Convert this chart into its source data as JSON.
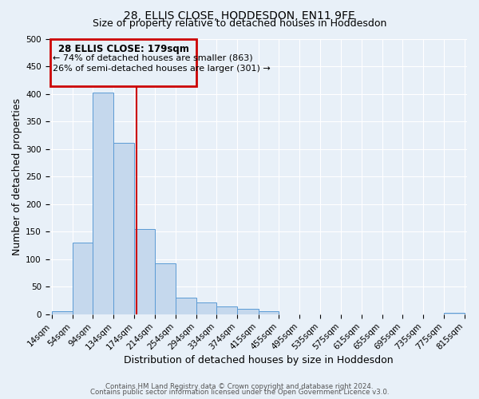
{
  "title": "28, ELLIS CLOSE, HODDESDON, EN11 9FE",
  "subtitle": "Size of property relative to detached houses in Hoddesdon",
  "xlabel": "Distribution of detached houses by size in Hoddesdon",
  "ylabel": "Number of detached properties",
  "footnote1": "Contains HM Land Registry data © Crown copyright and database right 2024.",
  "footnote2": "Contains public sector information licensed under the Open Government Licence v3.0.",
  "bin_edges": [
    14,
    54,
    94,
    134,
    174,
    214,
    254,
    294,
    334,
    374,
    415,
    455,
    495,
    535,
    575,
    615,
    655,
    695,
    735,
    775,
    815
  ],
  "bin_labels": [
    "14sqm",
    "54sqm",
    "94sqm",
    "134sqm",
    "174sqm",
    "214sqm",
    "254sqm",
    "294sqm",
    "334sqm",
    "374sqm",
    "415sqm",
    "455sqm",
    "495sqm",
    "535sqm",
    "575sqm",
    "615sqm",
    "655sqm",
    "695sqm",
    "735sqm",
    "775sqm",
    "815sqm"
  ],
  "counts": [
    6,
    130,
    403,
    311,
    155,
    92,
    30,
    21,
    14,
    10,
    5,
    0,
    0,
    0,
    0,
    0,
    0,
    0,
    0,
    2
  ],
  "bar_color": "#c5d8ed",
  "bar_edge_color": "#5b9bd5",
  "vline_color": "#cc0000",
  "vline_x": 179,
  "annotation_title": "28 ELLIS CLOSE: 179sqm",
  "annotation_line1": "← 74% of detached houses are smaller (863)",
  "annotation_line2": "26% of semi-detached houses are larger (301) →",
  "annotation_box_color": "#cc0000",
  "annotation_text_color": "#000000",
  "ylim": [
    0,
    500
  ],
  "bg_color": "#e8f0f8",
  "grid_color": "#ffffff",
  "title_fontsize": 10,
  "subtitle_fontsize": 9,
  "axis_label_fontsize": 9,
  "tick_fontsize": 7.5,
  "annotation_fontsize": 8,
  "footnote_color": "#555555"
}
